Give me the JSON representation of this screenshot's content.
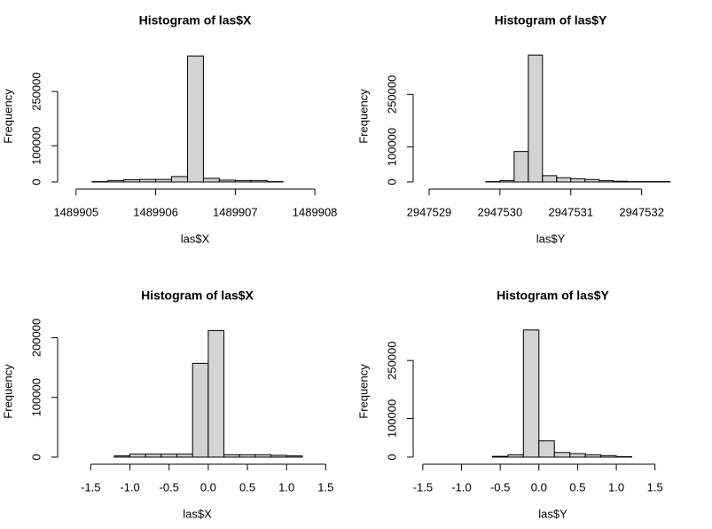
{
  "chart_data": [
    {
      "type": "histogram",
      "title": "Histogram of las$X",
      "x_label": "las$X",
      "y_label": "Frequency",
      "color": "#d3d3d3",
      "bins": [
        1489905.2,
        1489905.4,
        1489905.6,
        1489905.8,
        1489906.0,
        1489906.2,
        1489906.4,
        1489906.6,
        1489906.8,
        1489907.0,
        1489907.2,
        1489907.4,
        1489907.6
      ],
      "values": [
        1000,
        4000,
        6000,
        7000,
        7000,
        15000,
        348000,
        10000,
        5000,
        4000,
        4000,
        1000
      ],
      "xlim": [
        1489904.88,
        1489908.11
      ],
      "xticks": [
        1489905,
        1489906,
        1489907,
        1489908
      ],
      "ylim": [
        0,
        363000
      ],
      "yticks": [
        0,
        100000,
        250000
      ]
    },
    {
      "type": "histogram",
      "title": "Histogram of las$Y",
      "x_label": "las$Y",
      "y_label": "Frequency",
      "color": "#d3d3d3",
      "bins": [
        2947529.8,
        2947530.0,
        2947530.2,
        2947530.4,
        2947530.6,
        2947530.8,
        2947531.0,
        2947531.2,
        2947531.4,
        2947531.6,
        2947531.8,
        2947532.0,
        2947532.2,
        2947532.4
      ],
      "values": [
        1000,
        4000,
        87000,
        362000,
        18000,
        12000,
        9000,
        7000,
        4000,
        2000,
        1000,
        1000,
        1000
      ],
      "xlim": [
        2947528.9,
        2947532.53
      ],
      "xticks": [
        2947529,
        2947530,
        2947531,
        2947532
      ],
      "ylim": [
        0,
        375000
      ],
      "yticks": [
        0,
        100000,
        250000
      ]
    },
    {
      "type": "histogram",
      "title": "Histogram of las$X",
      "x_label": "las$X",
      "y_label": "Frequency",
      "color": "#d3d3d3",
      "bins": [
        -1.2,
        -1.0,
        -0.8,
        -0.6,
        -0.4,
        -0.2,
        0.0,
        0.2,
        0.4,
        0.6,
        0.8,
        1.0,
        1.2
      ],
      "values": [
        2000,
        5000,
        5000,
        5000,
        5000,
        157000,
        212000,
        4000,
        4000,
        4000,
        3000,
        2000
      ],
      "xlim": [
        -1.81,
        1.53
      ],
      "xticks": [
        -1.5,
        {
          "value": -1,
          "label": "-1.0"
        },
        -0.5,
        {
          "value": 0,
          "label": "0.0"
        },
        0.5,
        {
          "value": 1,
          "label": "1.0"
        },
        1.5
      ],
      "ylim": [
        0,
        220000
      ],
      "yticks": [
        0,
        100000,
        200000
      ]
    },
    {
      "type": "histogram",
      "title": "Histogram of las$Y",
      "x_label": "las$Y",
      "y_label": "Frequency",
      "color": "#d3d3d3",
      "bins": [
        -0.6,
        -0.4,
        -0.2,
        0.0,
        0.2,
        0.4,
        0.6,
        0.8,
        1.0,
        1.2
      ],
      "values": [
        2000,
        6000,
        329000,
        42000,
        12000,
        9000,
        6000,
        4000,
        1000
      ],
      "xlim": [
        -1.51,
        1.87
      ],
      "xticks": [
        -1.5,
        {
          "value": -1,
          "label": "-1.0"
        },
        -0.5,
        {
          "value": 0,
          "label": "0.0"
        },
        0.5,
        {
          "value": 1,
          "label": "1.0"
        },
        1.5
      ],
      "ylim": [
        0,
        340000
      ],
      "yticks": [
        0,
        100000,
        250000
      ]
    }
  ]
}
